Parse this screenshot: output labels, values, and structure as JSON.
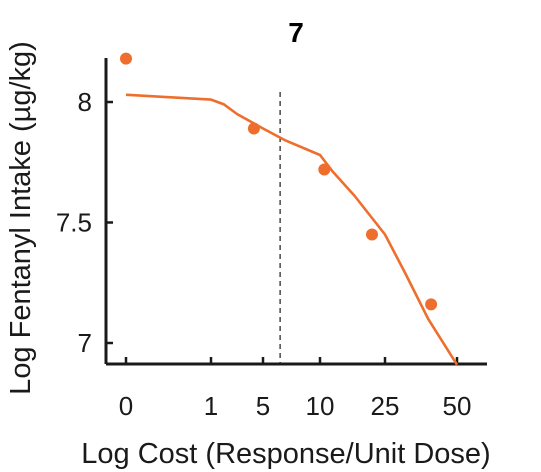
{
  "chart_data": {
    "type": "scatter",
    "title": "7",
    "xlabel": "Log Cost (Response/Unit Dose)",
    "ylabel": "Log Fentanyl Intake (µg/kg)",
    "x_ticks": [
      {
        "label": "0",
        "value": 0
      },
      {
        "label": "1",
        "value": 1
      },
      {
        "label": "5",
        "value": 5
      },
      {
        "label": "10",
        "value": 10
      },
      {
        "label": "25",
        "value": 25
      },
      {
        "label": "50",
        "value": 50
      }
    ],
    "y_ticks": [
      {
        "label": "7",
        "value": 7
      },
      {
        "label": "7.5",
        "value": 7.5
      },
      {
        "label": "8",
        "value": 8
      }
    ],
    "ylim": [
      6.9,
      8.2
    ],
    "points": [
      {
        "x": 0,
        "y": 8.18
      },
      {
        "x": 4.3,
        "y": 7.89
      },
      {
        "x": 11,
        "y": 7.72
      },
      {
        "x": 22,
        "y": 7.45
      },
      {
        "x": 41,
        "y": 7.16
      }
    ],
    "fit_curve": [
      {
        "x": 0,
        "y": 8.03
      },
      {
        "x": 0.5,
        "y": 8.02
      },
      {
        "x": 1,
        "y": 8.01
      },
      {
        "x": 2,
        "y": 7.99
      },
      {
        "x": 3,
        "y": 7.95
      },
      {
        "x": 5,
        "y": 7.89
      },
      {
        "x": 7,
        "y": 7.84
      },
      {
        "x": 10,
        "y": 7.78
      },
      {
        "x": 13,
        "y": 7.71
      },
      {
        "x": 18,
        "y": 7.61
      },
      {
        "x": 25,
        "y": 7.45
      },
      {
        "x": 32,
        "y": 7.29
      },
      {
        "x": 40,
        "y": 7.1
      },
      {
        "x": 50,
        "y": 6.91
      }
    ],
    "reference_line_x": 6.5,
    "colors": {
      "series": "#ee6f2d",
      "axis": "#1a1a1a",
      "reference": "#1a1a1a"
    },
    "grid": false
  }
}
